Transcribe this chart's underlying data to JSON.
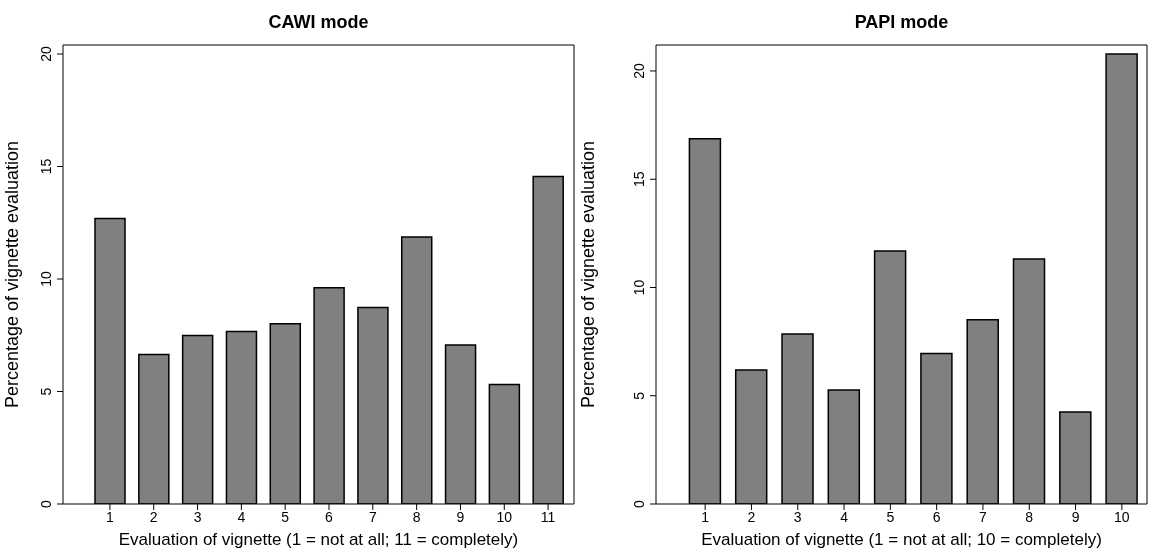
{
  "chart_data": [
    {
      "type": "bar",
      "title": "CAWI mode",
      "xlabel": "Evaluation of vignette (1 = not at all; 11 = completely)",
      "ylabel": "Percentage of vignette evaluation",
      "categories": [
        "1",
        "2",
        "3",
        "4",
        "5",
        "6",
        "7",
        "8",
        "9",
        "10",
        "11"
      ],
      "values": [
        12.69,
        6.64,
        7.49,
        7.67,
        8.01,
        9.61,
        8.73,
        11.87,
        7.07,
        5.31,
        14.56
      ],
      "color": "#808080",
      "ylim": [
        0,
        20.4
      ],
      "yticks": [
        0,
        5,
        10,
        15,
        20
      ],
      "grid": false
    },
    {
      "type": "bar",
      "title": "PAPI mode",
      "xlabel": "Evaluation of vignette (1 = not at all; 10 = completely)",
      "ylabel": "Percentage of vignette evaluation",
      "categories": [
        "1",
        "2",
        "3",
        "4",
        "5",
        "6",
        "7",
        "8",
        "9",
        "10"
      ],
      "values": [
        16.87,
        6.19,
        7.85,
        5.27,
        11.69,
        6.95,
        8.51,
        11.32,
        4.25,
        20.78
      ],
      "color": "#808080",
      "ylim": [
        0,
        21.2
      ],
      "yticks": [
        0,
        5,
        10,
        15,
        20
      ],
      "grid": false
    }
  ]
}
